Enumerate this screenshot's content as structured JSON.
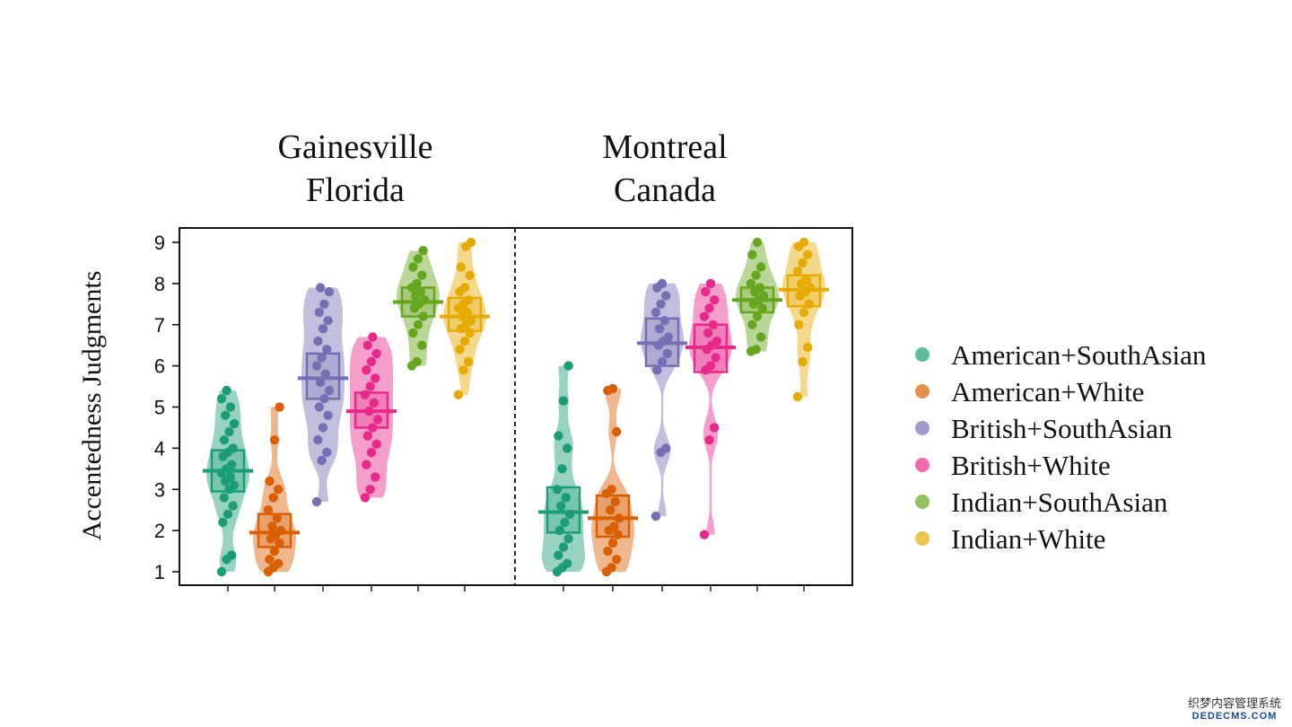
{
  "chart_data": {
    "type": "violin",
    "ylabel": "Accentedness Judgments",
    "ylim": [
      1,
      9
    ],
    "yticks": [
      1,
      2,
      3,
      4,
      5,
      6,
      7,
      8,
      9
    ],
    "panels": [
      {
        "title_lines": [
          "Gainesville",
          "Florida"
        ],
        "groups": [
          {
            "name": "American+SouthAsian",
            "color": "#1b9e77",
            "mean": 3.45,
            "q1": 2.95,
            "q3": 3.95,
            "points": [
              1.0,
              1.3,
              1.4,
              2.2,
              2.4,
              2.6,
              2.8,
              3.0,
              3.1,
              3.2,
              3.3,
              3.4,
              3.5,
              3.6,
              3.8,
              3.9,
              4.0,
              4.2,
              4.4,
              4.6,
              4.8,
              5.0,
              5.2,
              5.4
            ]
          },
          {
            "name": "American+White",
            "color": "#d95f02",
            "mean": 1.95,
            "q1": 1.6,
            "q3": 2.4,
            "points": [
              1.0,
              1.1,
              1.2,
              1.3,
              1.5,
              1.7,
              1.8,
              1.9,
              2.0,
              2.1,
              2.3,
              2.5,
              2.8,
              3.0,
              3.2,
              4.2,
              5.0
            ]
          },
          {
            "name": "British+SouthAsian",
            "color": "#7570b3",
            "mean": 5.7,
            "q1": 5.2,
            "q3": 6.3,
            "points": [
              2.7,
              3.7,
              3.9,
              4.2,
              4.5,
              4.8,
              5.0,
              5.2,
              5.4,
              5.6,
              5.8,
              6.0,
              6.2,
              6.4,
              6.6,
              6.9,
              7.1,
              7.3,
              7.5,
              7.8,
              7.9
            ]
          },
          {
            "name": "British+White",
            "color": "#e7298a",
            "mean": 4.9,
            "q1": 4.5,
            "q3": 5.35,
            "points": [
              2.8,
              3.0,
              3.3,
              3.6,
              3.9,
              4.1,
              4.3,
              4.5,
              4.7,
              4.9,
              5.1,
              5.3,
              5.5,
              5.7,
              5.9,
              6.1,
              6.3,
              6.5,
              6.7
            ]
          },
          {
            "name": "Indian+SouthAsian",
            "color": "#66a61e",
            "mean": 7.55,
            "q1": 7.2,
            "q3": 7.9,
            "points": [
              6.0,
              6.1,
              6.5,
              6.8,
              7.0,
              7.2,
              7.4,
              7.5,
              7.6,
              7.7,
              7.8,
              7.9,
              8.0,
              8.2,
              8.4,
              8.6,
              8.8
            ]
          },
          {
            "name": "Indian+White",
            "color": "#e6ab02",
            "mean": 7.2,
            "q1": 6.85,
            "q3": 7.65,
            "points": [
              5.3,
              5.9,
              6.1,
              6.4,
              6.6,
              6.8,
              6.9,
              7.0,
              7.1,
              7.2,
              7.3,
              7.4,
              7.5,
              7.6,
              7.8,
              7.9,
              8.2,
              8.4,
              8.9,
              9.0
            ]
          }
        ]
      },
      {
        "title_lines": [
          "Montreal",
          "Canada"
        ],
        "groups": [
          {
            "name": "American+SouthAsian",
            "color": "#1b9e77",
            "mean": 2.45,
            "q1": 1.95,
            "q3": 3.05,
            "points": [
              1.0,
              1.1,
              1.2,
              1.4,
              1.6,
              1.8,
              2.0,
              2.2,
              2.4,
              2.6,
              2.8,
              3.0,
              3.5,
              4.0,
              4.3,
              5.15,
              6.0
            ]
          },
          {
            "name": "American+White",
            "color": "#d95f02",
            "mean": 2.3,
            "q1": 1.85,
            "q3": 2.85,
            "points": [
              1.0,
              1.1,
              1.3,
              1.5,
              1.7,
              1.9,
              2.0,
              2.1,
              2.3,
              2.5,
              2.7,
              2.9,
              3.0,
              4.4,
              5.4,
              5.45
            ]
          },
          {
            "name": "British+SouthAsian",
            "color": "#7570b3",
            "mean": 6.55,
            "q1": 6.0,
            "q3": 7.15,
            "points": [
              2.35,
              3.9,
              4.0,
              5.9,
              6.1,
              6.3,
              6.5,
              6.6,
              6.7,
              6.9,
              7.1,
              7.3,
              7.5,
              7.7,
              7.9,
              8.0
            ]
          },
          {
            "name": "British+White",
            "color": "#e7298a",
            "mean": 6.45,
            "q1": 5.85,
            "q3": 7.0,
            "points": [
              1.9,
              4.2,
              4.5,
              5.9,
              6.0,
              6.2,
              6.4,
              6.5,
              6.6,
              6.8,
              7.0,
              7.2,
              7.4,
              7.6,
              7.8,
              8.0
            ]
          },
          {
            "name": "Indian+SouthAsian",
            "color": "#66a61e",
            "mean": 7.6,
            "q1": 7.3,
            "q3": 7.9,
            "points": [
              6.35,
              6.4,
              6.7,
              7.0,
              7.2,
              7.4,
              7.5,
              7.6,
              7.7,
              7.8,
              7.9,
              8.0,
              8.2,
              8.4,
              8.7,
              9.0
            ]
          },
          {
            "name": "Indian+White",
            "color": "#e6ab02",
            "mean": 7.85,
            "q1": 7.45,
            "q3": 8.2,
            "points": [
              5.25,
              6.1,
              6.45,
              7.0,
              7.3,
              7.5,
              7.7,
              7.8,
              7.9,
              8.0,
              8.1,
              8.3,
              8.5,
              8.7,
              8.9,
              9.0
            ]
          }
        ]
      }
    ],
    "legend": {
      "placement": "right",
      "entries": [
        {
          "label": "American+SouthAsian",
          "color": "#1b9e77"
        },
        {
          "label": "American+White",
          "color": "#d95f02"
        },
        {
          "label": "British+SouthAsian",
          "color": "#7570b3"
        },
        {
          "label": "British+White",
          "color": "#e7298a"
        },
        {
          "label": "Indian+SouthAsian",
          "color": "#66a61e"
        },
        {
          "label": "Indian+White",
          "color": "#e6ab02"
        }
      ]
    }
  },
  "watermark": {
    "line1": "织梦内容管理系统",
    "line2": "DEDECMS.COM"
  }
}
